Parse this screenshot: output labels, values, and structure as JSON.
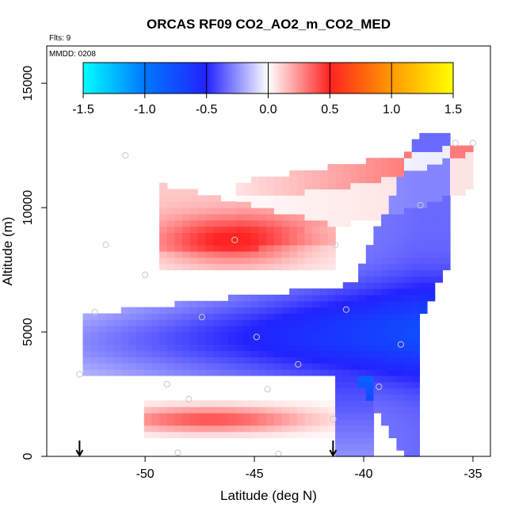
{
  "chart_data": {
    "type": "heatmap",
    "title": "ORCAS RF09 CO2_AO2_m_CO2_MED",
    "flights_label": "Flts: 9",
    "date_label": "MMDD: 0208",
    "xlabel": "Latitude (deg N)",
    "ylabel": "Altitude (m)",
    "xlim": [
      -54.5,
      -34.2
    ],
    "ylim": [
      0,
      16500
    ],
    "x_ticks": [
      -50,
      -45,
      -40,
      -35
    ],
    "y_ticks": [
      0,
      5000,
      10000,
      15000
    ],
    "colorbar": {
      "range": [
        -1.5,
        1.5
      ],
      "ticks": [
        "-1.5",
        "-1.0",
        "-0.5",
        "0.0",
        "0.5",
        "1.0",
        "1.5"
      ],
      "colors": [
        "#00ffff",
        "#0077ff",
        "#2222ff",
        "#ffffff",
        "#ff2222",
        "#ff9900",
        "#ffff00"
      ]
    },
    "markers": [
      -53.0,
      -41.4
    ],
    "sample_points": [
      {
        "lat": -50.9,
        "alt": 12100
      },
      {
        "lat": -51.8,
        "alt": 8500
      },
      {
        "lat": -50.0,
        "alt": 7300
      },
      {
        "lat": -52.3,
        "alt": 5800
      },
      {
        "lat": -47.4,
        "alt": 5600
      },
      {
        "lat": -45.9,
        "alt": 8700
      },
      {
        "lat": -44.9,
        "alt": 4800
      },
      {
        "lat": -43.0,
        "alt": 3700
      },
      {
        "lat": -44.4,
        "alt": 2700
      },
      {
        "lat": -48.0,
        "alt": 2300
      },
      {
        "lat": -49.0,
        "alt": 2900
      },
      {
        "lat": -53.0,
        "alt": 3300
      },
      {
        "lat": -41.3,
        "alt": 8500
      },
      {
        "lat": -40.8,
        "alt": 5900
      },
      {
        "lat": -39.3,
        "alt": 2800
      },
      {
        "lat": -38.3,
        "alt": 4500
      },
      {
        "lat": -41.4,
        "alt": 1500
      },
      {
        "lat": -48.5,
        "alt": 150
      },
      {
        "lat": -43.9,
        "alt": 100
      },
      {
        "lat": -35.0,
        "alt": 12600
      },
      {
        "lat": -35.8,
        "alt": 12600
      },
      {
        "lat": -37.4,
        "alt": 10100
      }
    ],
    "features": [
      {
        "name": "upper-right positive layer",
        "lat_range": [
          -46.0,
          -35.0
        ],
        "alt_top": [
          11000,
          12600
        ],
        "alt_bottom_start": 10500,
        "peak": 0.3
      },
      {
        "name": "upper-left positive layer",
        "lat_range": [
          -49.5,
          -41.3
        ],
        "alt_range": [
          7500,
          11000
        ],
        "core_lat": -46.0,
        "core_alt": 8700,
        "peak": 0.4
      },
      {
        "name": "mid-level negative layer",
        "lat_range": [
          -53.0,
          -37.5
        ],
        "alt_range": [
          3300,
          7500
        ],
        "core_alt": 4600,
        "peak": -0.75
      },
      {
        "name": "lower positive layer",
        "lat_range": [
          -50.0,
          -41.4
        ],
        "alt_range": [
          800,
          2200
        ],
        "core_alt": 1500,
        "peak": 0.4
      }
    ]
  }
}
